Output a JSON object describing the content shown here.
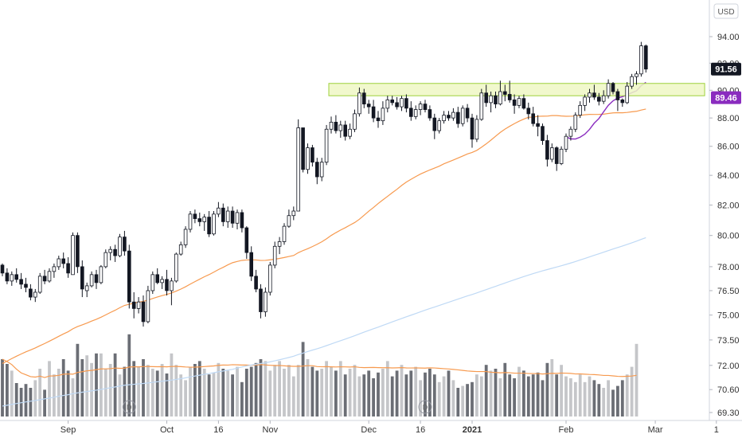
{
  "currency_label": "USD",
  "chart_data": {
    "type": "candlestick",
    "y_axis": {
      "scale": "log",
      "position": "right",
      "range": [
        69.0,
        95.5
      ],
      "ticks": [
        {
          "value": 69.3,
          "label": "69.30"
        },
        {
          "value": 70.6,
          "label": "70.60"
        },
        {
          "value": 72.0,
          "label": "72.00"
        },
        {
          "value": 73.5,
          "label": "73.50"
        },
        {
          "value": 75.0,
          "label": "75.00"
        },
        {
          "value": 76.5,
          "label": "76.50"
        },
        {
          "value": 78.0,
          "label": "78.00"
        },
        {
          "value": 80.0,
          "label": "80.00"
        },
        {
          "value": 82.0,
          "label": "82.00"
        },
        {
          "value": 84.0,
          "label": "84.00"
        },
        {
          "value": 86.0,
          "label": "86.00"
        },
        {
          "value": 88.0,
          "label": "88.00"
        },
        {
          "value": 90.0,
          "label": "90.00"
        },
        {
          "value": 92.0,
          "label": "92.00"
        },
        {
          "value": 94.0,
          "label": "94.00"
        }
      ]
    },
    "x_axis": {
      "ticks": [
        {
          "label": "Sep",
          "bar": 14,
          "bold": false
        },
        {
          "label": "Oct",
          "bar": 35,
          "bold": false
        },
        {
          "label": "16",
          "bar": 46,
          "bold": false
        },
        {
          "label": "Nov",
          "bar": 57,
          "bold": false
        },
        {
          "label": "Dec",
          "bar": 78,
          "bold": false
        },
        {
          "label": "16",
          "bar": 89,
          "bold": false
        },
        {
          "label": "2021",
          "bar": 100,
          "bold": true
        },
        {
          "label": "Feb",
          "bar": 120,
          "bold": false
        },
        {
          "label": "Mar",
          "bar": 139,
          "bold": false
        },
        {
          "label": "1",
          "bar": 152,
          "bold": false
        }
      ]
    },
    "candles": [
      [
        78.1,
        78.2,
        77.4,
        77.6
      ],
      [
        77.6,
        77.9,
        76.9,
        77.1
      ],
      [
        77.1,
        77.7,
        76.8,
        77.5
      ],
      [
        77.5,
        77.9,
        77.0,
        77.2
      ],
      [
        77.2,
        77.6,
        76.6,
        76.9
      ],
      [
        76.9,
        77.3,
        76.4,
        76.7
      ],
      [
        76.6,
        76.9,
        75.9,
        76.1
      ],
      [
        76.1,
        76.6,
        75.8,
        76.4
      ],
      [
        76.4,
        77.6,
        76.3,
        77.4
      ],
      [
        77.4,
        77.8,
        76.9,
        77.1
      ],
      [
        77.1,
        77.9,
        77.0,
        77.7
      ],
      [
        77.7,
        78.2,
        77.3,
        78.0
      ],
      [
        78.0,
        78.7,
        77.8,
        78.5
      ],
      [
        78.5,
        78.9,
        77.9,
        78.2
      ],
      [
        78.2,
        78.6,
        77.3,
        77.6
      ],
      [
        77.5,
        80.2,
        77.5,
        80.0
      ],
      [
        80.0,
        80.2,
        77.6,
        78.0
      ],
      [
        78.0,
        78.4,
        76.1,
        76.6
      ],
      [
        76.5,
        77.0,
        76.1,
        76.8
      ],
      [
        76.8,
        77.7,
        76.7,
        77.5
      ],
      [
        77.5,
        77.8,
        76.6,
        77.0
      ],
      [
        77.0,
        78.1,
        76.9,
        78.0
      ],
      [
        78.0,
        79.1,
        77.9,
        78.9
      ],
      [
        78.9,
        79.3,
        78.4,
        79.1
      ],
      [
        79.1,
        79.4,
        78.3,
        78.7
      ],
      [
        78.7,
        80.1,
        78.6,
        79.9
      ],
      [
        79.9,
        80.3,
        78.7,
        79.0
      ],
      [
        79.0,
        79.4,
        75.4,
        75.8
      ],
      [
        75.8,
        76.4,
        74.8,
        75.4
      ],
      [
        75.4,
        76.1,
        75.1,
        75.8
      ],
      [
        75.8,
        76.2,
        74.3,
        74.6
      ],
      [
        74.6,
        76.8,
        74.5,
        76.5
      ],
      [
        76.5,
        77.7,
        76.3,
        77.5
      ],
      [
        77.5,
        77.9,
        76.9,
        77.0
      ],
      [
        77.0,
        77.4,
        76.6,
        77.2
      ],
      [
        77.2,
        77.8,
        76.2,
        76.5
      ],
      [
        76.5,
        77.3,
        75.6,
        77.1
      ],
      [
        77.1,
        78.9,
        77.0,
        78.8
      ],
      [
        78.8,
        79.6,
        78.7,
        79.4
      ],
      [
        79.4,
        80.6,
        79.2,
        80.4
      ],
      [
        80.4,
        81.6,
        80.2,
        81.4
      ],
      [
        81.4,
        81.7,
        80.8,
        81.1
      ],
      [
        81.1,
        81.5,
        80.6,
        80.9
      ],
      [
        80.9,
        81.4,
        80.3,
        81.2
      ],
      [
        81.2,
        81.6,
        79.9,
        80.1
      ],
      [
        80.1,
        81.6,
        80.0,
        81.4
      ],
      [
        81.4,
        82.2,
        81.2,
        81.8
      ],
      [
        81.8,
        82.1,
        80.6,
        80.9
      ],
      [
        80.9,
        81.9,
        80.5,
        81.6
      ],
      [
        81.6,
        81.9,
        80.5,
        80.8
      ],
      [
        80.8,
        81.7,
        80.4,
        81.5
      ],
      [
        81.5,
        81.7,
        80.2,
        80.5
      ],
      [
        80.5,
        80.6,
        78.5,
        78.9
      ],
      [
        78.9,
        79.3,
        77.1,
        77.4
      ],
      [
        77.4,
        77.8,
        76.4,
        76.6
      ],
      [
        76.6,
        76.9,
        74.8,
        75.2
      ],
      [
        75.2,
        76.7,
        74.9,
        76.4
      ],
      [
        76.4,
        78.3,
        76.2,
        78.1
      ],
      [
        78.1,
        79.6,
        77.9,
        79.3
      ],
      [
        79.3,
        79.9,
        78.8,
        79.6
      ],
      [
        79.6,
        80.8,
        79.4,
        80.6
      ],
      [
        80.6,
        81.7,
        80.5,
        81.3
      ],
      [
        81.3,
        81.9,
        81.0,
        81.6
      ],
      [
        81.6,
        87.9,
        81.6,
        87.3
      ],
      [
        87.3,
        87.3,
        84.2,
        84.4
      ],
      [
        84.4,
        86.2,
        84.1,
        85.9
      ],
      [
        85.9,
        86.1,
        84.6,
        84.9
      ],
      [
        84.9,
        85.2,
        83.4,
        83.9
      ],
      [
        83.9,
        85.2,
        83.6,
        84.9
      ],
      [
        84.9,
        87.5,
        84.7,
        87.2
      ],
      [
        87.2,
        88.1,
        86.9,
        87.7
      ],
      [
        87.7,
        88.2,
        86.9,
        87.1
      ],
      [
        87.1,
        87.8,
        86.6,
        87.5
      ],
      [
        87.5,
        87.8,
        86.4,
        86.7
      ],
      [
        86.7,
        87.6,
        86.5,
        87.2
      ],
      [
        87.2,
        88.6,
        87.0,
        88.3
      ],
      [
        88.3,
        90.2,
        88.1,
        89.8
      ],
      [
        89.8,
        90.1,
        88.7,
        89.0
      ],
      [
        89.0,
        89.3,
        88.3,
        88.8
      ],
      [
        88.8,
        89.3,
        87.7,
        88.0
      ],
      [
        88.0,
        88.5,
        87.3,
        87.8
      ],
      [
        87.8,
        89.2,
        87.5,
        88.7
      ],
      [
        88.7,
        89.6,
        88.4,
        89.3
      ],
      [
        89.3,
        89.6,
        88.9,
        89.1
      ],
      [
        89.1,
        89.5,
        88.6,
        88.8
      ],
      [
        88.8,
        89.6,
        88.5,
        89.4
      ],
      [
        89.4,
        89.7,
        88.4,
        88.7
      ],
      [
        88.7,
        89.2,
        87.8,
        88.1
      ],
      [
        88.1,
        88.9,
        87.9,
        88.6
      ],
      [
        88.6,
        89.2,
        88.2,
        89.0
      ],
      [
        89.0,
        89.3,
        88.4,
        88.6
      ],
      [
        88.6,
        88.9,
        87.8,
        88.0
      ],
      [
        88.0,
        88.3,
        86.5,
        87.1
      ],
      [
        87.1,
        88.0,
        86.9,
        87.8
      ],
      [
        87.8,
        88.5,
        87.6,
        88.2
      ],
      [
        88.2,
        88.5,
        87.8,
        88.0
      ],
      [
        88.0,
        88.7,
        87.8,
        88.4
      ],
      [
        88.4,
        88.8,
        87.3,
        87.6
      ],
      [
        87.6,
        88.9,
        87.4,
        88.7
      ],
      [
        88.7,
        89.0,
        87.7,
        88.0
      ],
      [
        88.0,
        88.3,
        85.9,
        86.5
      ],
      [
        86.5,
        88.2,
        86.3,
        87.9
      ],
      [
        87.9,
        90.1,
        87.8,
        89.8
      ],
      [
        89.8,
        90.4,
        88.8,
        89.1
      ],
      [
        89.1,
        89.9,
        88.4,
        89.6
      ],
      [
        89.6,
        89.9,
        88.7,
        89.0
      ],
      [
        89.0,
        90.7,
        88.9,
        89.9
      ],
      [
        89.9,
        90.4,
        89.2,
        89.7
      ],
      [
        89.7,
        90.7,
        89.1,
        89.3
      ],
      [
        89.3,
        89.7,
        88.3,
        88.9
      ],
      [
        88.9,
        89.6,
        88.7,
        89.4
      ],
      [
        89.4,
        89.7,
        88.6,
        88.7
      ],
      [
        88.7,
        89.1,
        87.9,
        88.3
      ],
      [
        88.3,
        88.8,
        87.4,
        87.6
      ],
      [
        87.6,
        88.2,
        86.7,
        87.4
      ],
      [
        87.4,
        87.6,
        86.1,
        86.4
      ],
      [
        86.4,
        86.8,
        84.6,
        85.1
      ],
      [
        85.1,
        86.2,
        84.9,
        85.9
      ],
      [
        85.9,
        86.0,
        84.3,
        84.8
      ],
      [
        84.8,
        86.0,
        84.7,
        85.8
      ],
      [
        85.8,
        86.9,
        85.6,
        86.7
      ],
      [
        86.7,
        87.4,
        86.4,
        87.2
      ],
      [
        87.2,
        88.4,
        87.0,
        88.2
      ],
      [
        88.2,
        89.2,
        88.0,
        88.9
      ],
      [
        88.9,
        89.7,
        88.5,
        89.5
      ],
      [
        89.5,
        90.1,
        89.1,
        89.8
      ],
      [
        89.8,
        90.4,
        89.3,
        89.5
      ],
      [
        89.5,
        89.8,
        88.9,
        89.2
      ],
      [
        89.2,
        90.0,
        89.0,
        89.6
      ],
      [
        89.6,
        90.8,
        89.4,
        90.5
      ],
      [
        90.5,
        90.6,
        89.7,
        89.9
      ],
      [
        89.9,
        90.1,
        88.5,
        89.3
      ],
      [
        89.3,
        89.4,
        88.8,
        89.1
      ],
      [
        89.1,
        90.6,
        89.0,
        90.3
      ],
      [
        90.3,
        91.2,
        90.1,
        91.0
      ],
      [
        91.0,
        91.4,
        90.4,
        91.2
      ],
      [
        91.2,
        93.6,
        91.0,
        93.3
      ],
      [
        93.3,
        93.4,
        91.3,
        91.56
      ]
    ],
    "volume": {
      "range": [
        0,
        100
      ],
      "values": [
        60,
        55,
        48,
        35,
        30,
        34,
        30,
        38,
        50,
        28,
        58,
        44,
        50,
        60,
        48,
        40,
        76,
        60,
        64,
        56,
        66,
        66,
        50,
        55,
        66,
        44,
        52,
        86,
        58,
        52,
        60,
        54,
        50,
        48,
        55,
        45,
        66,
        54,
        44,
        38,
        52,
        55,
        58,
        50,
        44,
        46,
        56,
        50,
        48,
        44,
        52,
        36,
        50,
        52,
        56,
        60,
        58,
        48,
        54,
        58,
        50,
        54,
        42,
        54,
        78,
        60,
        52,
        48,
        50,
        58,
        52,
        48,
        58,
        44,
        50,
        54,
        42,
        44,
        48,
        40,
        46,
        50,
        58,
        42,
        48,
        54,
        44,
        48,
        52,
        38,
        46,
        50,
        44,
        36,
        42,
        48,
        38,
        30,
        32,
        34,
        36,
        44,
        42,
        54,
        48,
        50,
        40,
        56,
        44,
        40,
        52,
        48,
        42,
        44,
        46,
        38,
        56,
        60,
        44,
        54,
        42,
        40,
        36,
        44,
        36,
        42,
        38,
        34,
        30,
        38,
        28,
        32,
        38,
        44,
        52,
        76
      ]
    },
    "series": [
      {
        "name": "",
        "color": "#f79a4f",
        "kind": "ma50"
      },
      {
        "name": "",
        "color": "#bfd9f5",
        "kind": "ma200"
      },
      {
        "name": "",
        "color": "#8a2cbf",
        "kind": "ma10"
      },
      {
        "name": "",
        "color": "#f79a4f",
        "kind": "volume-ma"
      }
    ],
    "zone": {
      "low": 89.6,
      "high": 90.5,
      "from_bar": 70,
      "to_bar": 149,
      "fill": "#eef7c4",
      "stroke": "#9ed13c"
    },
    "price_tags": [
      {
        "value": 91.56,
        "label": "91.56",
        "bg": "#131722",
        "color": "#ffffff"
      },
      {
        "value": 89.46,
        "label": "89.46",
        "bg": "#8a2cbf",
        "color": "#ffffff"
      }
    ],
    "dividends": [
      {
        "bar": 27,
        "label": "D"
      },
      {
        "bar": 90,
        "label": "D"
      }
    ],
    "grid": false,
    "legend": "none"
  }
}
